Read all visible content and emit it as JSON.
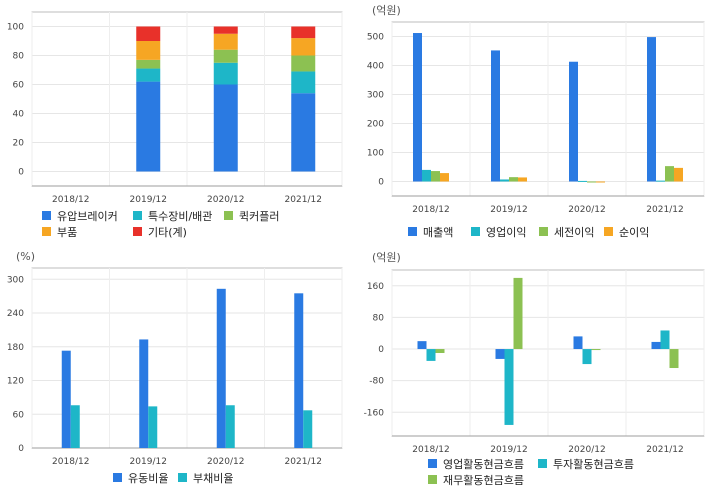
{
  "chart_data": [
    {
      "type": "bar",
      "stacked": true,
      "unit": "",
      "categories": [
        "2018/12",
        "2019/12",
        "2020/12",
        "2021/12"
      ],
      "ylim": [
        -10,
        110
      ],
      "yticks": [
        0,
        20,
        40,
        60,
        80,
        100
      ],
      "grid": true,
      "legend_position": "bottom",
      "series": [
        {
          "name": "유압브레이커",
          "color": "#2a7ae2",
          "values": [
            null,
            62,
            60,
            54
          ]
        },
        {
          "name": "특수장비/배관",
          "color": "#1eb6c8",
          "values": [
            null,
            9,
            15,
            15
          ]
        },
        {
          "name": "퀵커플러",
          "color": "#8cc152",
          "values": [
            null,
            6,
            9,
            11
          ]
        },
        {
          "name": "부품",
          "color": "#f6a623",
          "values": [
            null,
            13,
            11,
            12
          ]
        },
        {
          "name": "기타(계)",
          "color": "#e8312a",
          "values": [
            null,
            10,
            5,
            8
          ]
        }
      ]
    },
    {
      "type": "bar",
      "unit": "(억원)",
      "categories": [
        "2018/12",
        "2019/12",
        "2020/12",
        "2021/12"
      ],
      "ylim": [
        -50,
        550
      ],
      "yticks": [
        0,
        100,
        200,
        300,
        400,
        500
      ],
      "grid": true,
      "legend_position": "bottom",
      "series": [
        {
          "name": "매출액",
          "color": "#2a7ae2",
          "values": [
            512,
            452,
            413,
            498
          ]
        },
        {
          "name": "영업이익",
          "color": "#1eb6c8",
          "values": [
            40,
            7,
            2,
            3
          ]
        },
        {
          "name": "세전이익",
          "color": "#8cc152",
          "values": [
            36,
            15,
            -3,
            53
          ]
        },
        {
          "name": "순이익",
          "color": "#f6a623",
          "values": [
            29,
            14,
            0,
            47
          ]
        }
      ]
    },
    {
      "type": "bar",
      "unit": "(%)",
      "categories": [
        "2018/12",
        "2019/12",
        "2020/12",
        "2021/12"
      ],
      "ylim": [
        0,
        320
      ],
      "yticks": [
        0,
        60,
        120,
        180,
        240,
        300
      ],
      "grid": true,
      "legend_position": "bottom",
      "series": [
        {
          "name": "유동비율",
          "color": "#2a7ae2",
          "values": [
            173,
            193,
            283,
            275
          ]
        },
        {
          "name": "부채비율",
          "color": "#1eb6c8",
          "values": [
            76,
            74,
            76,
            67
          ]
        }
      ]
    },
    {
      "type": "bar",
      "unit": "(억원)",
      "categories": [
        "2018/12",
        "2019/12",
        "2020/12",
        "2021/12"
      ],
      "ylim": [
        -220,
        200
      ],
      "yticks": [
        -160,
        -80,
        0,
        80,
        160
      ],
      "grid": true,
      "legend_position": "bottom",
      "series": [
        {
          "name": "영업활동현금흐름",
          "color": "#2a7ae2",
          "values": [
            20,
            -25,
            32,
            18
          ]
        },
        {
          "name": "투자활동현금흐름",
          "color": "#1eb6c8",
          "values": [
            -30,
            -192,
            -38,
            47
          ]
        },
        {
          "name": "재무활동현금흐름",
          "color": "#8cc152",
          "values": [
            -10,
            180,
            0,
            -48
          ]
        }
      ]
    }
  ]
}
